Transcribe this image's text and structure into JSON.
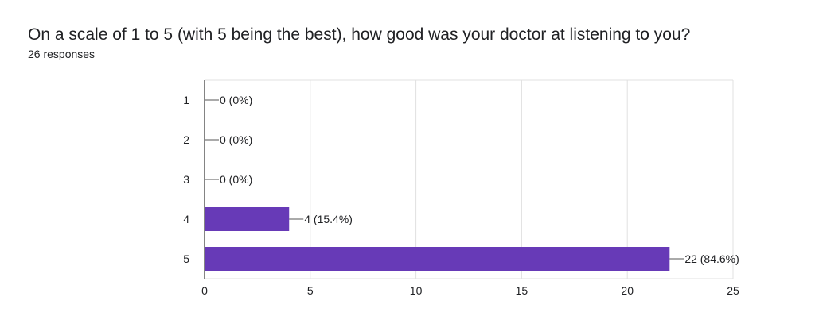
{
  "question": "On a scale of 1 to 5 (with 5 being the best), how good was your doctor at listening to you?",
  "response_count": "26 responses",
  "colors": {
    "bar": "#673ab7",
    "grid": "#e0e0e0",
    "axis": "#333333",
    "leader": "#555555"
  },
  "chart_data": {
    "type": "bar",
    "orientation": "horizontal",
    "title": "",
    "xlabel": "",
    "ylabel": "",
    "categories": [
      "1",
      "2",
      "3",
      "4",
      "5"
    ],
    "values": [
      0,
      0,
      0,
      4,
      22
    ],
    "data_labels": [
      "0 (0%)",
      "0 (0%)",
      "0 (0%)",
      "4 (15.4%)",
      "22 (84.6%)"
    ],
    "xlim": [
      0,
      25
    ],
    "xticks": [
      "0",
      "5",
      "10",
      "15",
      "20",
      "25"
    ],
    "grid": true,
    "legend": "none"
  }
}
